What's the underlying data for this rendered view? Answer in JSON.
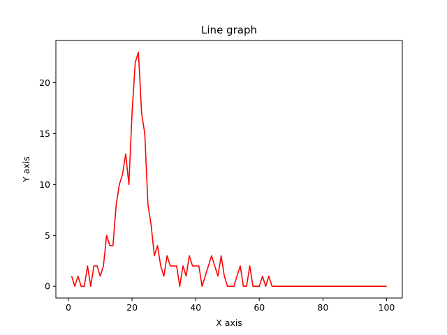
{
  "chart_data": {
    "type": "line",
    "title": "Line graph",
    "xlabel": "X axis",
    "ylabel": "Y axis",
    "xlim": [
      -3.95,
      104.95
    ],
    "ylim": [
      -1.15,
      24.15
    ],
    "xticks": [
      0,
      20,
      40,
      60,
      80,
      100
    ],
    "yticks": [
      0,
      5,
      10,
      15,
      20
    ],
    "grid": false,
    "series": [
      {
        "color": "#ff0000",
        "x": [
          1,
          2,
          3,
          4,
          5,
          6,
          7,
          8,
          9,
          10,
          11,
          12,
          13,
          14,
          15,
          16,
          17,
          18,
          19,
          20,
          21,
          22,
          23,
          24,
          25,
          26,
          27,
          28,
          29,
          30,
          31,
          32,
          33,
          34,
          35,
          36,
          37,
          38,
          39,
          40,
          41,
          42,
          43,
          44,
          45,
          46,
          47,
          48,
          49,
          50,
          51,
          52,
          53,
          54,
          55,
          56,
          57,
          58,
          59,
          60,
          61,
          62,
          63,
          64,
          65,
          66,
          67,
          68,
          69,
          70,
          71,
          72,
          73,
          74,
          75,
          76,
          77,
          78,
          79,
          80,
          81,
          82,
          83,
          84,
          85,
          86,
          87,
          88,
          89,
          90,
          91,
          92,
          93,
          94,
          95,
          96,
          97,
          98,
          99,
          100
        ],
        "y": [
          1,
          0,
          1,
          0,
          0,
          2,
          0,
          2,
          2,
          1,
          2,
          5,
          4,
          4,
          8,
          10,
          11,
          13,
          10,
          17,
          22,
          23,
          17,
          15,
          8,
          6,
          3,
          4,
          2,
          1,
          3,
          2,
          2,
          2,
          0,
          2,
          1,
          3,
          2,
          2,
          2,
          0,
          1,
          2,
          3,
          2,
          1,
          3,
          1,
          0,
          0,
          0,
          1,
          2,
          0,
          0,
          2,
          0,
          0,
          0,
          1,
          0,
          1,
          0,
          0,
          0,
          0,
          0,
          0,
          0,
          0,
          0,
          0,
          0,
          0,
          0,
          0,
          0,
          0,
          0,
          0,
          0,
          0,
          0,
          0,
          0,
          0,
          0,
          0,
          0,
          0,
          0,
          0,
          0,
          0,
          0,
          0,
          0,
          0,
          0
        ]
      }
    ]
  }
}
